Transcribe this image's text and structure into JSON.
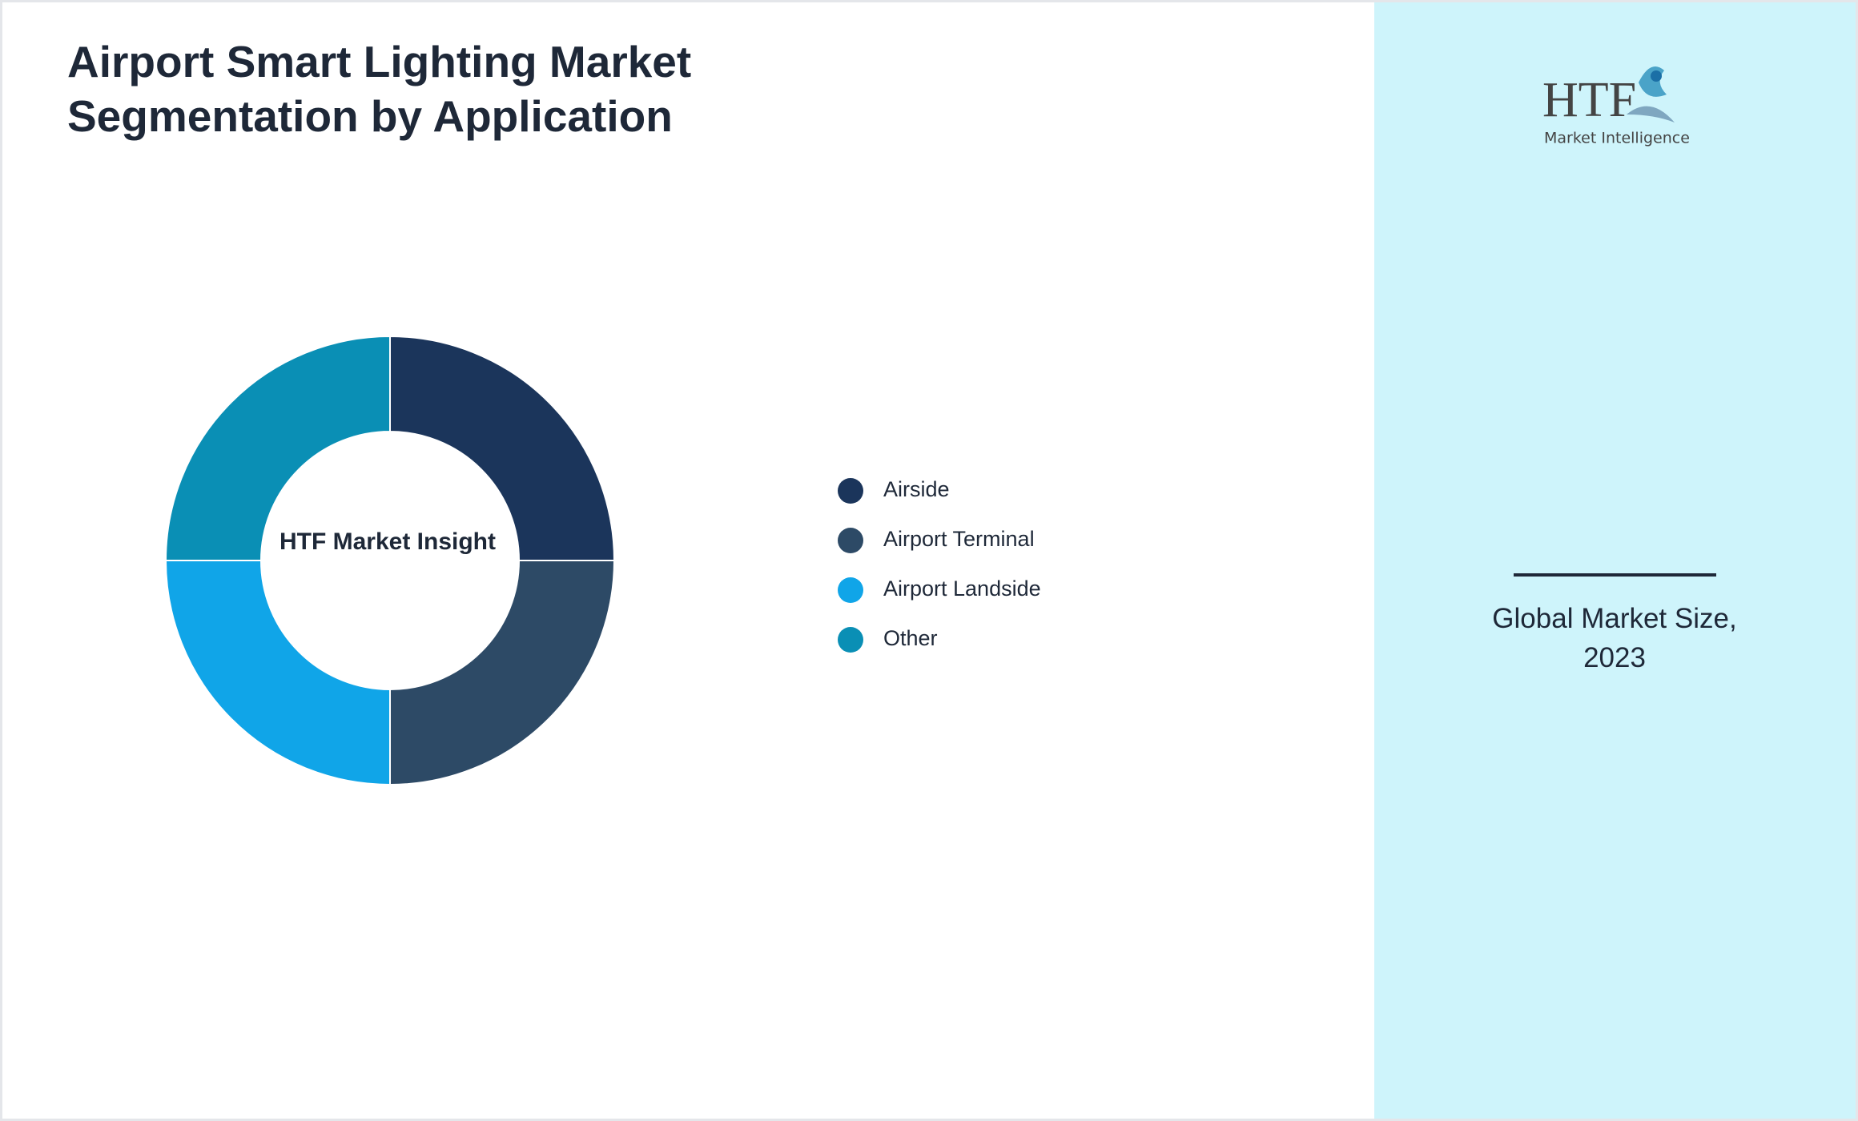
{
  "chart_data": {
    "type": "donut",
    "title": "Airport Smart Lighting Market Segmentation by Application",
    "center_label": "HTF Market Insight",
    "categories": [
      "Airside",
      "Airport Terminal",
      "Airport Landside",
      "Other"
    ],
    "values": [
      25,
      25,
      25,
      25
    ],
    "colors": [
      "#1b355b",
      "#2d4a66",
      "#10a5e8",
      "#0a8fb5"
    ]
  },
  "side_panel": {
    "logo": {
      "name": "HTF",
      "tagline": "Market Intelligence"
    },
    "caption": "Global Market Size, 2023"
  }
}
